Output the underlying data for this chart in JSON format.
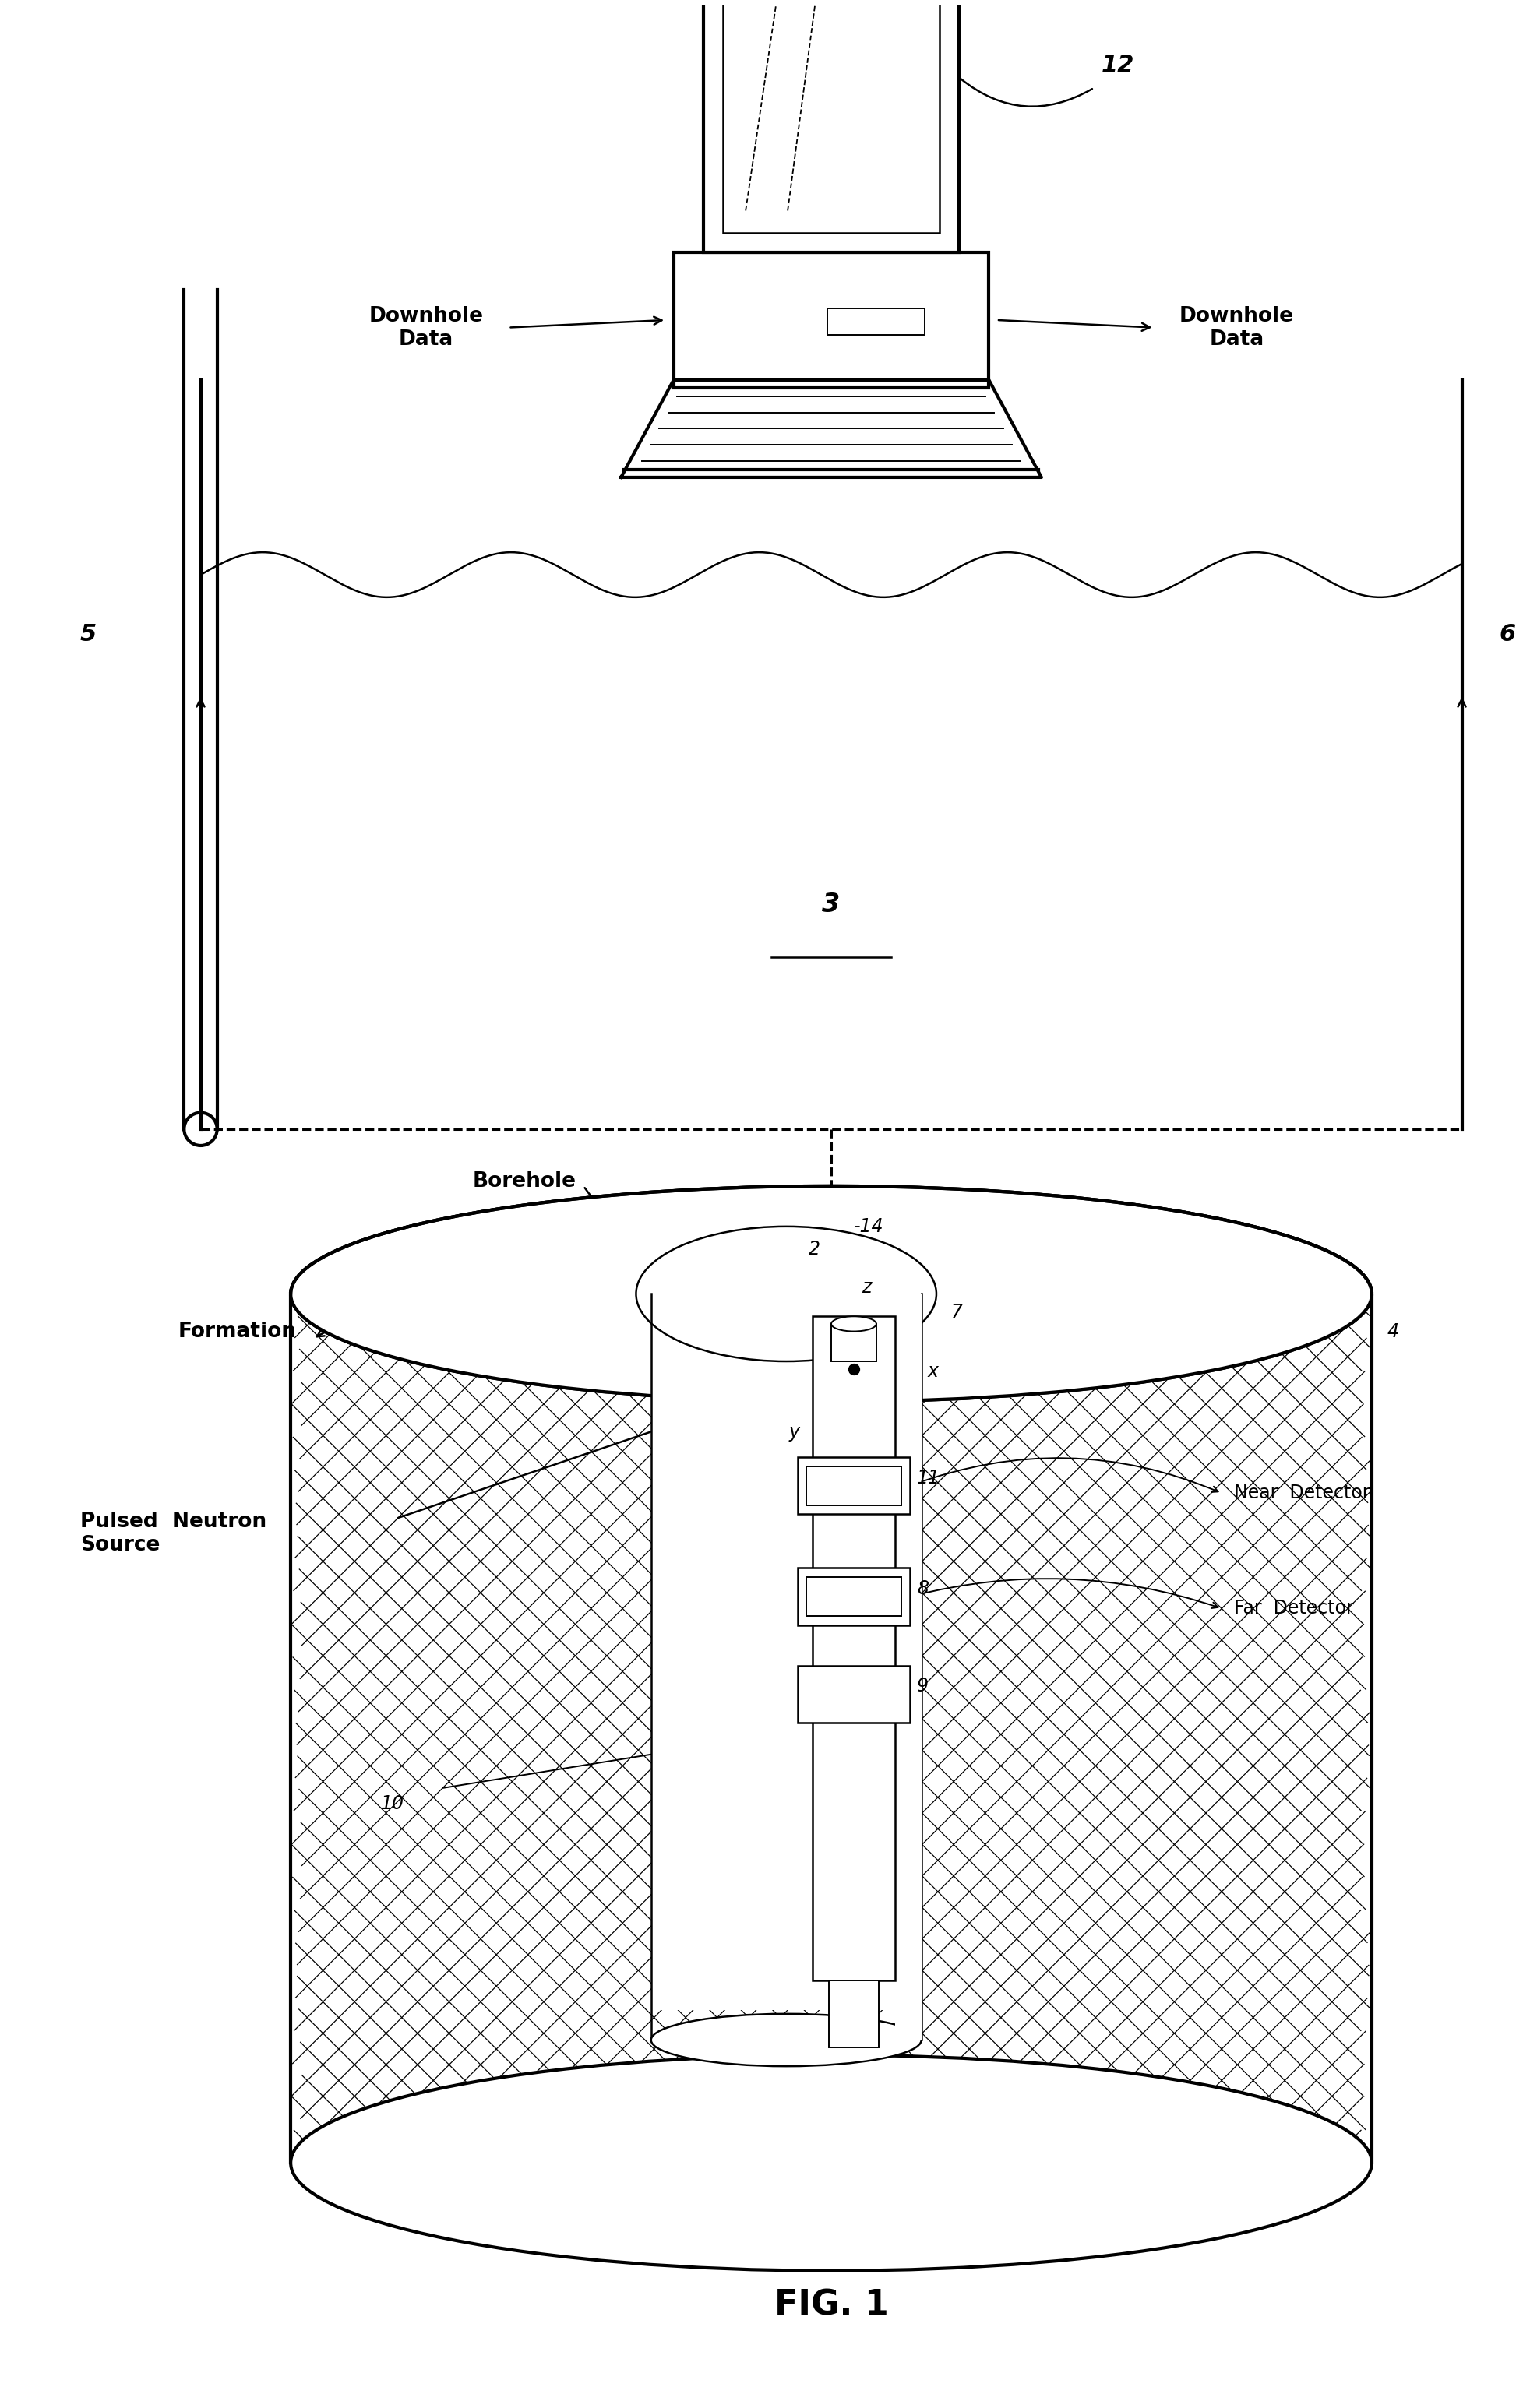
{
  "bg_color": "#ffffff",
  "figure_width": 19.55,
  "figure_height": 30.92,
  "labels": {
    "downhole_data_left": "Downhole\nData",
    "downhole_data_right": "Downhole\nData",
    "label_3": "3",
    "label_5": "5",
    "label_6": "6",
    "label_12": "12",
    "label_2": "2",
    "label_4": "4",
    "label_7": "7",
    "label_8": "8",
    "label_9": "9",
    "label_10": "10",
    "label_11": "11",
    "label_14": "14",
    "borehole": "Borehole",
    "formation": "Formation",
    "pulsed_neutron_source": "Pulsed  Neutron\nSource",
    "near_detector": "Near  Detector",
    "far_detector": "Far  Detector",
    "x_axis": "x",
    "y_axis": "y",
    "z_axis": "z",
    "fig_label": "FIG. 1"
  }
}
